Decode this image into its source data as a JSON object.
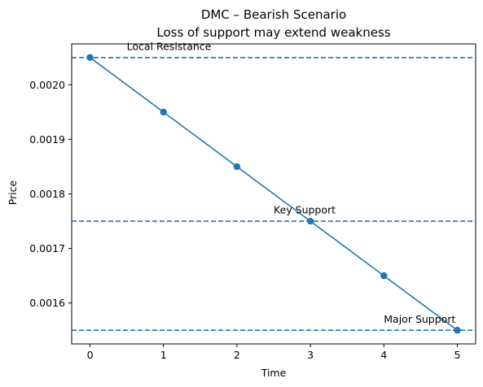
{
  "chart_data": {
    "type": "line",
    "title": "DMC – Bearish Scenario",
    "subtitle": "Loss of support may extend weakness",
    "xlabel": "Time",
    "ylabel": "Price",
    "x": [
      0,
      1,
      2,
      3,
      4,
      5
    ],
    "series": [
      {
        "values": [
          0.00205,
          0.00195,
          0.00185,
          0.00175,
          0.00165,
          0.00155
        ],
        "color": "#1f77b4",
        "marker": "circle"
      }
    ],
    "xlim": [
      -0.25,
      5.25
    ],
    "ylim": [
      0.001525,
      0.002075
    ],
    "xticks": [
      0,
      1,
      2,
      3,
      4,
      5
    ],
    "xtick_labels": [
      "0",
      "1",
      "2",
      "3",
      "4",
      "5"
    ],
    "yticks": [
      0.0016,
      0.0017,
      0.0018,
      0.0019,
      0.002
    ],
    "ytick_labels": [
      "0.0016",
      "0.0017",
      "0.0018",
      "0.0019",
      "0.0020"
    ],
    "grid": false,
    "hlines": [
      {
        "y": 0.00205,
        "style": "dashed",
        "color": "#1f77b4"
      },
      {
        "y": 0.00175,
        "style": "dashed",
        "color": "#1f77b4"
      },
      {
        "y": 0.00155,
        "style": "dashed",
        "color": "#1f77b4"
      }
    ],
    "annotations": [
      {
        "text": "Local Resistance",
        "x": 0.5,
        "y": 0.00207
      },
      {
        "text": "Key Support",
        "x": 2.5,
        "y": 0.00177
      },
      {
        "text": "Major Support",
        "x": 4.0,
        "y": 0.00157
      }
    ]
  }
}
